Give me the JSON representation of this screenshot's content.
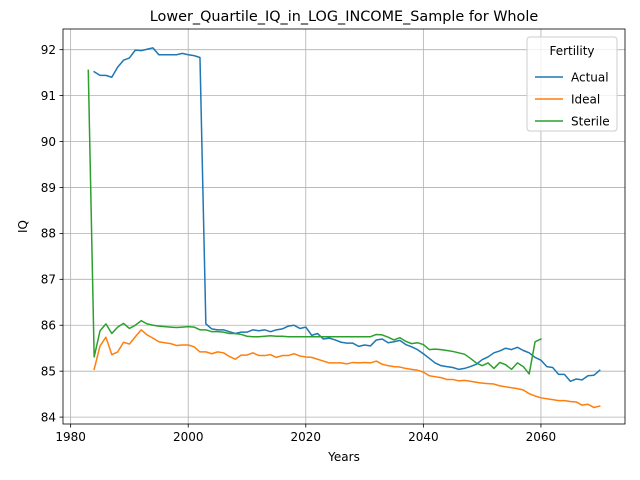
{
  "chart_data": {
    "type": "line",
    "title": "Lower_Quartile_IQ_in_LOG_INCOME_Sample for Whole",
    "xlabel": "Years",
    "ylabel": "IQ",
    "xlim": [
      1978.7,
      2074.3
    ],
    "ylim": [
      83.85,
      92.45
    ],
    "xticks": [
      1980,
      2000,
      2020,
      2040,
      2060
    ],
    "yticks": [
      84,
      85,
      86,
      87,
      88,
      89,
      90,
      91,
      92
    ],
    "grid": true,
    "legend": {
      "title": "Fertility",
      "placement": "top-right"
    },
    "series": [
      {
        "name": "Actual",
        "color": "#1f77b4",
        "points": [
          [
            1984,
            91.52
          ],
          [
            1985,
            91.44
          ],
          [
            1986,
            91.44
          ],
          [
            1987,
            91.4
          ],
          [
            1988,
            91.62
          ],
          [
            1989,
            91.77
          ],
          [
            1990,
            91.82
          ],
          [
            1991,
            91.99
          ],
          [
            1992,
            91.98
          ],
          [
            1993,
            92.01
          ],
          [
            1994,
            92.04
          ],
          [
            1995,
            91.89
          ],
          [
            1996,
            91.89
          ],
          [
            1997,
            91.89
          ],
          [
            1998,
            91.89
          ],
          [
            1999,
            91.92
          ],
          [
            2000,
            91.89
          ],
          [
            2001,
            91.87
          ],
          [
            2002,
            91.83
          ],
          [
            2003,
            86.03
          ],
          [
            2004,
            85.92
          ],
          [
            2005,
            85.9
          ],
          [
            2006,
            85.9
          ],
          [
            2007,
            85.86
          ],
          [
            2008,
            85.82
          ],
          [
            2009,
            85.85
          ],
          [
            2010,
            85.85
          ],
          [
            2011,
            85.9
          ],
          [
            2012,
            85.88
          ],
          [
            2013,
            85.9
          ],
          [
            2014,
            85.86
          ],
          [
            2015,
            85.9
          ],
          [
            2016,
            85.92
          ],
          [
            2017,
            85.98
          ],
          [
            2018,
            86.0
          ],
          [
            2019,
            85.93
          ],
          [
            2020,
            85.96
          ],
          [
            2021,
            85.78
          ],
          [
            2022,
            85.82
          ],
          [
            2023,
            85.7
          ],
          [
            2024,
            85.72
          ],
          [
            2025,
            85.68
          ],
          [
            2026,
            85.63
          ],
          [
            2027,
            85.61
          ],
          [
            2028,
            85.61
          ],
          [
            2029,
            85.54
          ],
          [
            2030,
            85.57
          ],
          [
            2031,
            85.55
          ],
          [
            2032,
            85.68
          ],
          [
            2033,
            85.7
          ],
          [
            2034,
            85.62
          ],
          [
            2035,
            85.64
          ],
          [
            2036,
            85.67
          ],
          [
            2037,
            85.58
          ],
          [
            2038,
            85.53
          ],
          [
            2039,
            85.47
          ],
          [
            2040,
            85.38
          ],
          [
            2041,
            85.28
          ],
          [
            2042,
            85.18
          ],
          [
            2043,
            85.12
          ],
          [
            2044,
            85.1
          ],
          [
            2045,
            85.08
          ],
          [
            2046,
            85.04
          ],
          [
            2047,
            85.06
          ],
          [
            2048,
            85.1
          ],
          [
            2049,
            85.15
          ],
          [
            2050,
            85.25
          ],
          [
            2051,
            85.31
          ],
          [
            2052,
            85.4
          ],
          [
            2053,
            85.44
          ],
          [
            2054,
            85.5
          ],
          [
            2055,
            85.47
          ],
          [
            2056,
            85.52
          ],
          [
            2057,
            85.45
          ],
          [
            2058,
            85.4
          ],
          [
            2059,
            85.3
          ],
          [
            2060,
            85.24
          ],
          [
            2061,
            85.1
          ],
          [
            2062,
            85.08
          ],
          [
            2063,
            84.93
          ],
          [
            2064,
            84.93
          ],
          [
            2065,
            84.78
          ],
          [
            2066,
            84.83
          ],
          [
            2067,
            84.81
          ],
          [
            2068,
            84.9
          ],
          [
            2069,
            84.91
          ],
          [
            2070,
            85.02
          ]
        ]
      },
      {
        "name": "Ideal",
        "color": "#ff7f0e",
        "points": [
          [
            1984,
            85.04
          ],
          [
            1985,
            85.55
          ],
          [
            1986,
            85.74
          ],
          [
            1987,
            85.36
          ],
          [
            1988,
            85.42
          ],
          [
            1989,
            85.63
          ],
          [
            1990,
            85.59
          ],
          [
            1991,
            85.75
          ],
          [
            1992,
            85.9
          ],
          [
            1993,
            85.79
          ],
          [
            1994,
            85.72
          ],
          [
            1995,
            85.64
          ],
          [
            1996,
            85.62
          ],
          [
            1997,
            85.6
          ],
          [
            1998,
            85.56
          ],
          [
            1999,
            85.57
          ],
          [
            2000,
            85.57
          ],
          [
            2001,
            85.53
          ],
          [
            2002,
            85.42
          ],
          [
            2003,
            85.42
          ],
          [
            2004,
            85.38
          ],
          [
            2005,
            85.42
          ],
          [
            2006,
            85.4
          ],
          [
            2007,
            85.32
          ],
          [
            2008,
            85.26
          ],
          [
            2009,
            85.35
          ],
          [
            2010,
            85.35
          ],
          [
            2011,
            85.4
          ],
          [
            2012,
            85.34
          ],
          [
            2013,
            85.34
          ],
          [
            2014,
            85.36
          ],
          [
            2015,
            85.3
          ],
          [
            2016,
            85.34
          ],
          [
            2017,
            85.34
          ],
          [
            2018,
            85.38
          ],
          [
            2019,
            85.33
          ],
          [
            2020,
            85.31
          ],
          [
            2021,
            85.3
          ],
          [
            2022,
            85.26
          ],
          [
            2023,
            85.22
          ],
          [
            2024,
            85.18
          ],
          [
            2025,
            85.18
          ],
          [
            2026,
            85.18
          ],
          [
            2027,
            85.16
          ],
          [
            2028,
            85.19
          ],
          [
            2029,
            85.18
          ],
          [
            2030,
            85.19
          ],
          [
            2031,
            85.18
          ],
          [
            2032,
            85.22
          ],
          [
            2033,
            85.15
          ],
          [
            2034,
            85.12
          ],
          [
            2035,
            85.1
          ],
          [
            2036,
            85.09
          ],
          [
            2037,
            85.06
          ],
          [
            2038,
            85.04
          ],
          [
            2039,
            85.02
          ],
          [
            2040,
            84.98
          ],
          [
            2041,
            84.9
          ],
          [
            2042,
            84.88
          ],
          [
            2043,
            84.86
          ],
          [
            2044,
            84.82
          ],
          [
            2045,
            84.82
          ],
          [
            2046,
            84.79
          ],
          [
            2047,
            84.8
          ],
          [
            2048,
            84.78
          ],
          [
            2049,
            84.76
          ],
          [
            2050,
            84.74
          ],
          [
            2051,
            84.73
          ],
          [
            2052,
            84.72
          ],
          [
            2053,
            84.68
          ],
          [
            2054,
            84.66
          ],
          [
            2055,
            84.64
          ],
          [
            2056,
            84.62
          ],
          [
            2057,
            84.59
          ],
          [
            2058,
            84.51
          ],
          [
            2059,
            84.46
          ],
          [
            2060,
            84.42
          ],
          [
            2061,
            84.4
          ],
          [
            2062,
            84.38
          ],
          [
            2063,
            84.36
          ],
          [
            2064,
            84.36
          ],
          [
            2065,
            84.34
          ],
          [
            2066,
            84.33
          ],
          [
            2067,
            84.26
          ],
          [
            2068,
            84.28
          ],
          [
            2069,
            84.21
          ],
          [
            2070,
            84.24
          ]
        ]
      },
      {
        "name": "Sterile",
        "color": "#2ca02c",
        "points": [
          [
            1983,
            91.55
          ],
          [
            1984,
            85.31
          ],
          [
            1985,
            85.88
          ],
          [
            1986,
            86.03
          ],
          [
            1987,
            85.82
          ],
          [
            1988,
            85.96
          ],
          [
            1989,
            86.04
          ],
          [
            1990,
            85.93
          ],
          [
            1991,
            86.0
          ],
          [
            1992,
            86.1
          ],
          [
            1993,
            86.03
          ],
          [
            1994,
            86.0
          ],
          [
            1995,
            85.98
          ],
          [
            1996,
            85.97
          ],
          [
            1997,
            85.96
          ],
          [
            1998,
            85.95
          ],
          [
            1999,
            85.96
          ],
          [
            2000,
            85.97
          ],
          [
            2001,
            85.96
          ],
          [
            2002,
            85.9
          ],
          [
            2003,
            85.9
          ],
          [
            2004,
            85.86
          ],
          [
            2005,
            85.86
          ],
          [
            2006,
            85.85
          ],
          [
            2007,
            85.82
          ],
          [
            2008,
            85.82
          ],
          [
            2009,
            85.8
          ],
          [
            2010,
            85.76
          ],
          [
            2011,
            85.75
          ],
          [
            2012,
            85.75
          ],
          [
            2013,
            85.76
          ],
          [
            2014,
            85.77
          ],
          [
            2015,
            85.76
          ],
          [
            2016,
            85.76
          ],
          [
            2017,
            85.75
          ],
          [
            2018,
            85.75
          ],
          [
            2019,
            85.75
          ],
          [
            2020,
            85.75
          ],
          [
            2021,
            85.75
          ],
          [
            2022,
            85.75
          ],
          [
            2023,
            85.75
          ],
          [
            2024,
            85.75
          ],
          [
            2025,
            85.75
          ],
          [
            2026,
            85.75
          ],
          [
            2027,
            85.75
          ],
          [
            2028,
            85.75
          ],
          [
            2029,
            85.75
          ],
          [
            2030,
            85.75
          ],
          [
            2031,
            85.75
          ],
          [
            2032,
            85.8
          ],
          [
            2033,
            85.79
          ],
          [
            2034,
            85.74
          ],
          [
            2035,
            85.68
          ],
          [
            2036,
            85.73
          ],
          [
            2037,
            85.65
          ],
          [
            2038,
            85.6
          ],
          [
            2039,
            85.62
          ],
          [
            2040,
            85.58
          ],
          [
            2041,
            85.47
          ],
          [
            2042,
            85.48
          ],
          [
            2043,
            85.47
          ],
          [
            2044,
            85.45
          ],
          [
            2045,
            85.43
          ],
          [
            2046,
            85.4
          ],
          [
            2047,
            85.37
          ],
          [
            2048,
            85.28
          ],
          [
            2049,
            85.18
          ],
          [
            2050,
            85.12
          ],
          [
            2051,
            85.18
          ],
          [
            2052,
            85.06
          ],
          [
            2053,
            85.19
          ],
          [
            2054,
            85.14
          ],
          [
            2055,
            85.04
          ],
          [
            2056,
            85.18
          ],
          [
            2057,
            85.1
          ],
          [
            2058,
            84.94
          ],
          [
            2059,
            85.64
          ],
          [
            2060,
            85.7
          ]
        ]
      }
    ]
  }
}
